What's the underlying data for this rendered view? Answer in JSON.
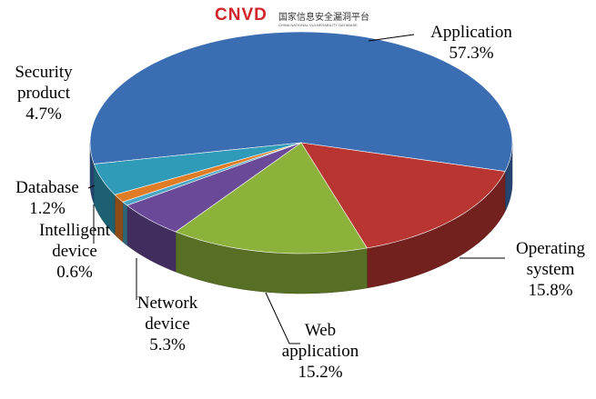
{
  "logo": {
    "mark": "CNVD",
    "name": "国家信息安全漏洞平台",
    "subtitle": "CHINA NATIONAL VULNERABILITY DATABASE"
  },
  "chart_data": {
    "type": "pie3d",
    "categories": [
      "Application",
      "Operating system",
      "Web application",
      "Network device",
      "Intelligent device",
      "Database",
      "Security product"
    ],
    "values": [
      57.3,
      15.8,
      15.2,
      5.3,
      0.6,
      1.2,
      4.7
    ],
    "value_labels": [
      "57.3%",
      "15.8%",
      "15.2%",
      "5.3%",
      "0.6%",
      "1.2%",
      "4.7%"
    ],
    "colors": [
      "#3b6db3",
      "#b83532",
      "#8cb23c",
      "#6a4a98",
      "#4aa6c4",
      "#e07b26",
      "#2f9bb8"
    ]
  }
}
